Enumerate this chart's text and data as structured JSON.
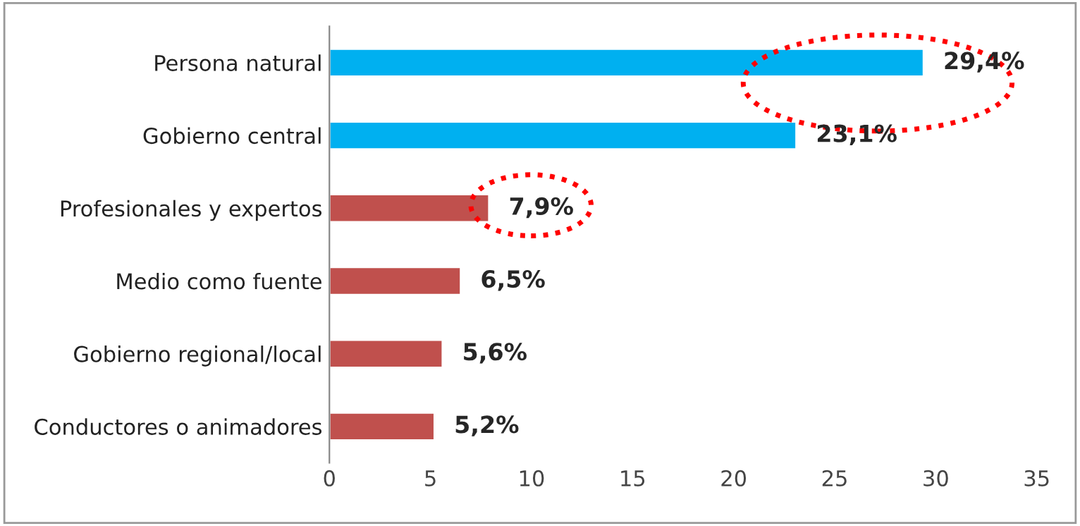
{
  "chart_data": {
    "type": "bar",
    "orientation": "horizontal",
    "categories": [
      "Persona natural",
      "Gobierno central",
      "Profesionales y expertos",
      "Medio como fuente",
      "Gobierno regional/local",
      "Conductores o animadores"
    ],
    "values": [
      29.4,
      23.1,
      7.9,
      6.5,
      5.6,
      5.2
    ],
    "colors": [
      "#00b0f0",
      "#00b0f0",
      "#c0504d",
      "#c0504d",
      "#c0504d",
      "#c0504d"
    ],
    "value_labels": [
      "29,4%",
      "23,1%",
      "7,9%",
      "6,5%",
      "5,6%",
      "5,2%"
    ],
    "xlim": [
      0,
      35
    ],
    "xticks": [
      0,
      5,
      10,
      15,
      20,
      25,
      30,
      35
    ],
    "grid": false,
    "legend": false
  }
}
